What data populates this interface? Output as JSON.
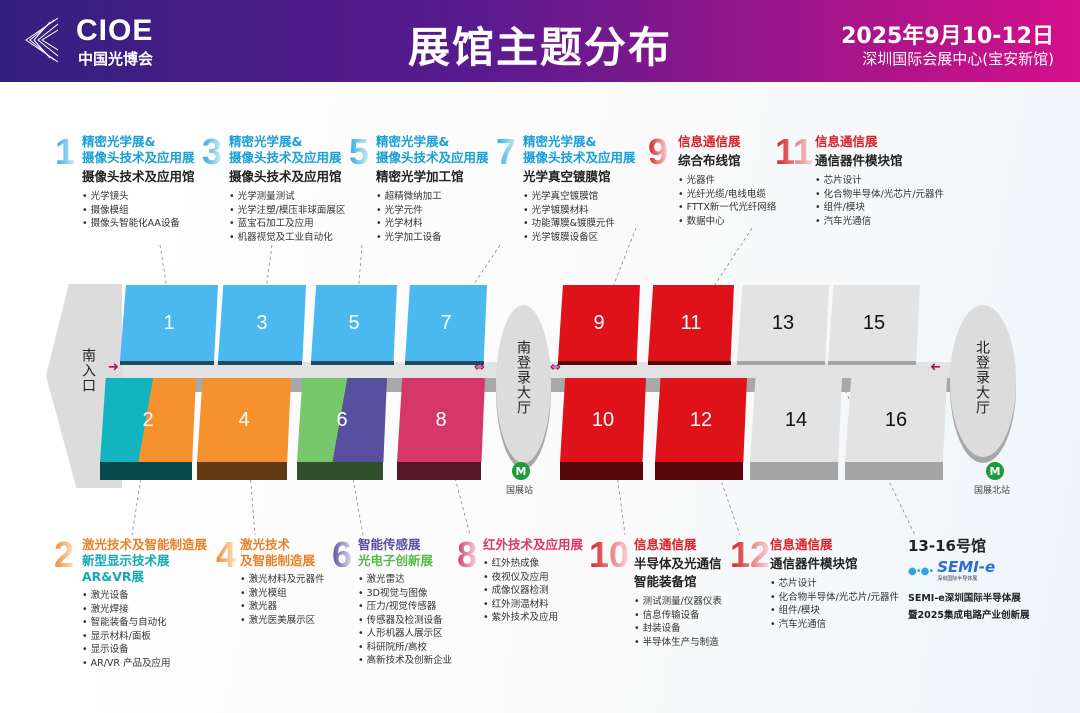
{
  "header": {
    "logo_text": "CIOE",
    "logo_cn": "中国光博会",
    "title": "展馆主题分布",
    "date": "2025年9月10-12日",
    "venue": "深圳国际会展中心(宝安新馆)"
  },
  "map": {
    "south_entrance": "南入口",
    "south_hall": "南登录大厅",
    "north_hall": "北登录大厅",
    "south_metro": "国展站",
    "north_metro": "国展北站",
    "halls": [
      "1",
      "2",
      "3",
      "4",
      "5",
      "6",
      "7",
      "8",
      "9",
      "10",
      "11",
      "12",
      "13",
      "14",
      "15",
      "16"
    ],
    "colors": {
      "optics": "#4bb8ef",
      "laser_teal": "#12b4c0",
      "laser": "#f5922e",
      "sensing_green": "#76c86a",
      "sensing_purple": "#57509f",
      "infrared": "#d6376a",
      "comm": "#e01219",
      "semi": "#e3e3e3"
    }
  },
  "top_info": [
    {
      "num": "1",
      "t1": "精密光学展&",
      "t2": "摄像头技术及应用展",
      "hall": "摄像头技术及应用馆",
      "items": [
        "光学镜头",
        "摄像模组",
        "摄像头智能化AA设备"
      ]
    },
    {
      "num": "3",
      "t1": "精密光学展&",
      "t2": "摄像头技术及应用展",
      "hall": "摄像头技术及应用馆",
      "items": [
        "光学测量测试",
        "光学注塑/模压非球面展区",
        "蓝宝石加工及应用",
        "机器视觉及工业自动化"
      ]
    },
    {
      "num": "5",
      "t1": "精密光学展&",
      "t2": "摄像头技术及应用展",
      "hall": "精密光学加工馆",
      "items": [
        "超精微纳加工",
        "光学元件",
        "光学材料",
        "光学加工设备"
      ]
    },
    {
      "num": "7",
      "t1": "精密光学展&",
      "t2": "摄像头技术及应用展",
      "hall": "光学真空镀膜馆",
      "items": [
        "光学真空镀膜馆",
        "光学镀膜材料",
        "功能薄膜&镀膜元件",
        "光学镀膜设备区"
      ]
    },
    {
      "num": "9",
      "t1": "信息通信展",
      "hall": "综合布线馆",
      "items": [
        "光器件",
        "光纤光缆/电线电缆",
        "FTTX新一代光纤网络",
        "数据中心"
      ]
    },
    {
      "num": "11",
      "t1": "信息通信展",
      "hall": "通信器件模块馆",
      "items": [
        "芯片设计",
        "化合物半导体/光芯片/元器件",
        "组件/模块",
        "汽车光通信"
      ]
    }
  ],
  "bottom_info": [
    {
      "num": "2",
      "t1": "激光技术及智能制造展",
      "t2": "新型显示技术展",
      "t3": "AR&VR展",
      "items": [
        "激光设备",
        "激光焊接",
        "智能装备与自动化",
        "显示材料/面板",
        "显示设备",
        "AR/VR 产品及应用"
      ]
    },
    {
      "num": "4",
      "t1": "激光技术",
      "t2": "及智能制造展",
      "items": [
        "激光材料及元器件",
        "激光模组",
        "激光器",
        "激光医美展示区"
      ]
    },
    {
      "num": "6",
      "t1": "智能传感展",
      "t2": "光电子创新展",
      "items": [
        "激光雷达",
        "3D视觉与图像",
        "压力/视觉传感器",
        "传感器及检测设备",
        "人形机器人展示区",
        "科研院所/高校",
        "高新技术及创新企业"
      ]
    },
    {
      "num": "8",
      "t1": "红外技术及应用展",
      "items": [
        "红外热成像",
        "夜视仪及应用",
        "成像仪器检测",
        "红外测温材料",
        "紫外技术及应用"
      ]
    },
    {
      "num": "10",
      "t1": "信息通信展",
      "hall": "半导体及光通信",
      "hall2": "智能装备馆",
      "items": [
        "测试测量/仪器仪表",
        "信息传输设备",
        "封装设备",
        "半导体生产与制造"
      ]
    },
    {
      "num": "12",
      "t1": "信息通信展",
      "hall": "通信器件模块馆",
      "items": [
        "芯片设计",
        "化合物半导体/光芯片/元器件",
        "组件/模块",
        "汽车光通信"
      ]
    }
  ],
  "semi": {
    "title": "13-16号馆",
    "logo_text": "SEMI-e",
    "logo_sub": "深圳国际半导体展",
    "line1": "SEMI-e深圳国际半导体展",
    "line2": "暨2025集成电路产业创新展"
  }
}
